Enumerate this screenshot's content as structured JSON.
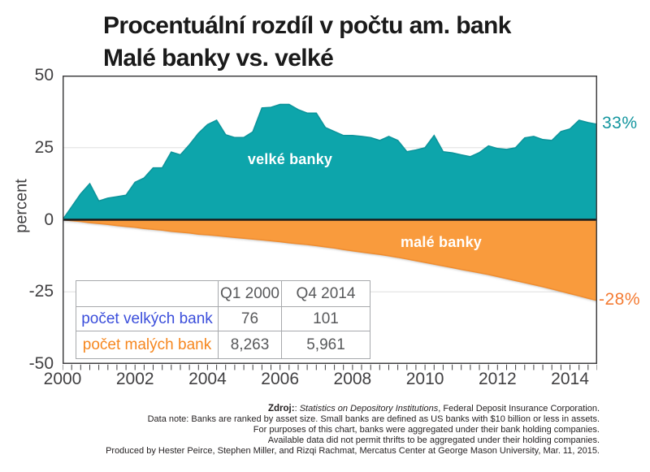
{
  "title": {
    "line1": "Procentuální rozdíl v počtu am. bank",
    "line2": "Malé banky vs. velké"
  },
  "chart_data": {
    "type": "area",
    "x_range_years": [
      2000,
      2015
    ],
    "x_ticks": [
      {
        "label": "2000",
        "quarter": 0
      },
      {
        "label": "2002",
        "quarter": 8
      },
      {
        "label": "2004",
        "quarter": 16
      },
      {
        "label": "2006",
        "quarter": 24
      },
      {
        "label": "2008",
        "quarter": 32
      },
      {
        "label": "2010",
        "quarter": 40
      },
      {
        "label": "2012",
        "quarter": 48
      },
      {
        "label": "2014",
        "quarter": 56
      }
    ],
    "y_ticks": [
      {
        "label": "50",
        "value": 50
      },
      {
        "label": "25",
        "value": 25
      },
      {
        "label": "0",
        "value": 0
      },
      {
        "label": "-25",
        "value": -25
      },
      {
        "label": "-50",
        "value": -50
      }
    ],
    "gridline_values": [
      25,
      -25
    ],
    "ylabel": "percent",
    "ylim": [
      -50,
      50
    ],
    "series": [
      {
        "name": "velké banky",
        "fill_color": "#0FA5AB",
        "edge_color": "#0B949B",
        "values": [
          0,
          4.5,
          9,
          12.5,
          6.5,
          7.5,
          8,
          8.5,
          13,
          14.5,
          18,
          18,
          23.5,
          22.5,
          26,
          30,
          33,
          34.5,
          29.5,
          28.5,
          28.5,
          30.5,
          38.8,
          39,
          40,
          40,
          38.2,
          37,
          37,
          32,
          30.6,
          29.2,
          29.2,
          28.9,
          28.5,
          27.5,
          28.9,
          27.5,
          23.6,
          24.2,
          25,
          29.2,
          23.6,
          23.2,
          22.5,
          21.9,
          23.3,
          25.6,
          24.7,
          24.4,
          25,
          28.4,
          28.9,
          27.8,
          27.5,
          30.6,
          31.5,
          34.5,
          33.7,
          33.1
        ]
      },
      {
        "name": "malé banky",
        "fill_color": "#F99B3E",
        "edge_color": "#EF8C2F",
        "values": [
          0,
          -0.3,
          -0.6,
          -1,
          -1.3,
          -1.6,
          -2,
          -2.3,
          -2.6,
          -3,
          -3.3,
          -3.6,
          -4,
          -4.3,
          -4.6,
          -5,
          -5.2,
          -5.5,
          -5.8,
          -6.1,
          -6.4,
          -6.7,
          -7,
          -7.3,
          -7.6,
          -8,
          -8.3,
          -8.6,
          -9,
          -9.4,
          -9.8,
          -10.3,
          -10.8,
          -11.2,
          -11.6,
          -12,
          -12.5,
          -13,
          -13.6,
          -14.2,
          -14.8,
          -15.4,
          -16,
          -16.6,
          -17.2,
          -17.8,
          -18.4,
          -19,
          -19.7,
          -20.4,
          -21.1,
          -21.8,
          -22.5,
          -23.2,
          -24,
          -24.8,
          -25.6,
          -26.4,
          -27.2,
          -28
        ]
      }
    ],
    "end_labels": [
      {
        "text": "33%",
        "color": "#12959E"
      },
      {
        "text": "-28%",
        "color": "#F47B33"
      }
    ],
    "axis_color": "#414042",
    "zero_line_color": "#1A1A1A",
    "gridline_color": "#E4E4E4"
  },
  "table": {
    "headers": [
      "",
      "Q1 2000",
      "Q4 2014"
    ],
    "rows": [
      {
        "label": "počet velkých bank",
        "label_color": "#3B4EDB",
        "values": [
          "76",
          "101"
        ]
      },
      {
        "label": "počet malých bank",
        "label_color": "#F6871F",
        "values": [
          "8,263",
          "5,961"
        ]
      }
    ]
  },
  "footer": {
    "source_label": "Zdroj:",
    "source_sep": ": ",
    "source_italic": "Statistics on Depository Institutions",
    "source_rest": ", Federal Deposit Insurance Corporation.",
    "lines": [
      "Data note: Banks are ranked by asset size. Small banks are defined as US banks with $10 billion or less in assets.",
      "For purposes of this chart, banks were aggregated under their bank holding companies.",
      "Available data did not permit thrifts to be aggregated under their holding companies.",
      "Produced by Hester Peirce, Stephen Miller, and Rizqi Rachmat, Mercatus Center at George Mason University, Mar. 11, 2015."
    ]
  }
}
